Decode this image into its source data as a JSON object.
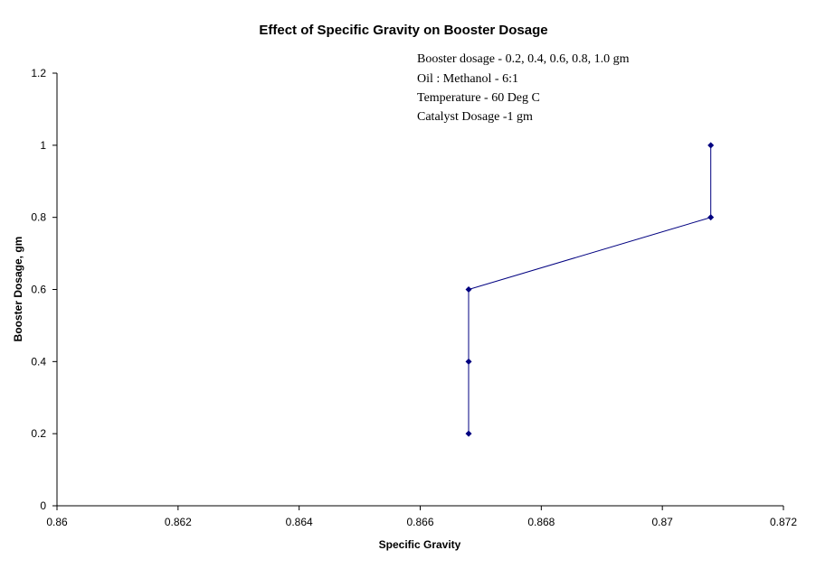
{
  "chart_data": {
    "type": "line",
    "title": "Effect of Specific Gravity on Booster Dosage",
    "xlabel": "Specific Gravity",
    "ylabel": "Booster Dosage, gm",
    "xlim": [
      0.86,
      0.872
    ],
    "ylim": [
      0,
      1.2
    ],
    "x_ticks": [
      "0.86",
      "0.862",
      "0.864",
      "0.866",
      "0.868",
      "0.87",
      "0.872"
    ],
    "y_ticks": [
      "0",
      "0.2",
      "0.4",
      "0.6",
      "0.8",
      "1",
      "1.2"
    ],
    "grid": false,
    "series": [
      {
        "color": "#000080",
        "marker": "diamond",
        "x": [
          0.8668,
          0.8668,
          0.8668,
          0.8708,
          0.8708
        ],
        "y": [
          0.2,
          0.4,
          0.6,
          0.8,
          1.0
        ]
      }
    ],
    "annotations": [
      "Booster dosage - 0.2, 0.4, 0.6, 0.8, 1.0 gm",
      "Oil : Methanol - 6:1",
      "Temperature - 60 Deg C",
      "Catalyst Dosage -1 gm"
    ]
  }
}
